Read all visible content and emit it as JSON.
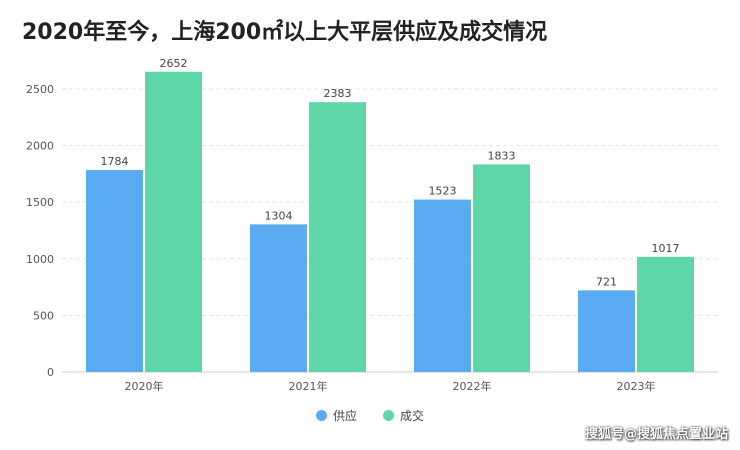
{
  "title": "2020年至今，上海200㎡以上大平层供应及成交情况",
  "watermark": "搜狐号@搜狐焦点置业站",
  "colors": {
    "supply": "#5aabf2",
    "deal": "#5ed6a8"
  },
  "chart_data": {
    "type": "bar",
    "categories": [
      "2020年",
      "2021年",
      "2022年",
      "2023年"
    ],
    "series": [
      {
        "name": "供应",
        "values": [
          1784,
          1304,
          1523,
          721
        ]
      },
      {
        "name": "成交",
        "values": [
          2652,
          2383,
          1833,
          1017
        ]
      }
    ],
    "ylim": [
      0,
      2800
    ],
    "yticks": [
      0,
      500,
      1000,
      1500,
      2000,
      2500
    ],
    "grid": true,
    "legend_position": "bottom-center",
    "xlabel": "",
    "ylabel": ""
  }
}
